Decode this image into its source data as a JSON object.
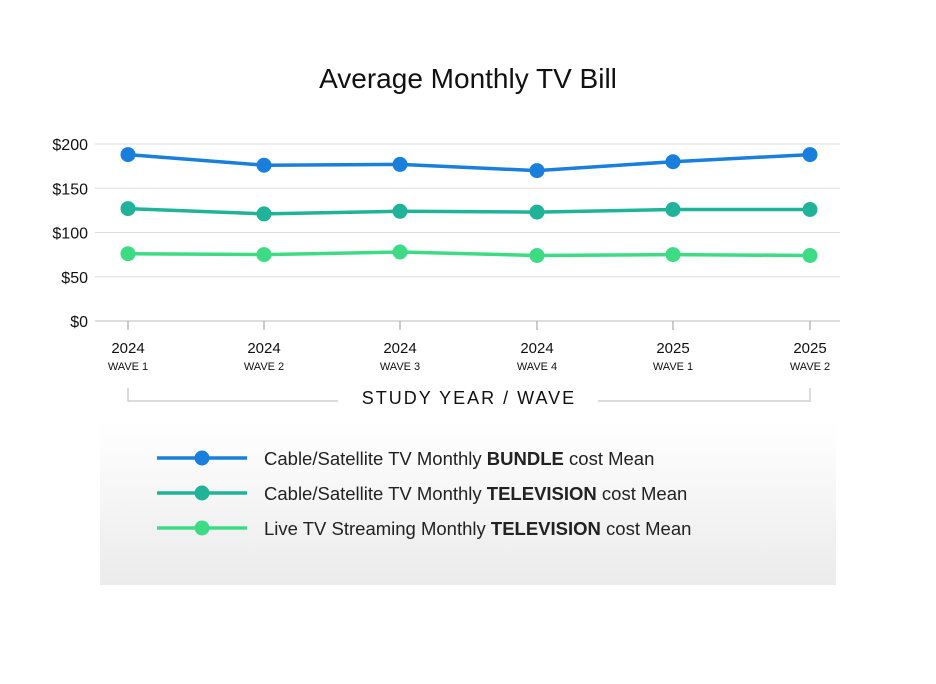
{
  "chart_data": {
    "type": "line",
    "title": "Average Monthly TV Bill",
    "xlabel": "STUDY YEAR /  WAVE",
    "ylabel": "",
    "ylim": [
      0,
      200
    ],
    "yticks": [
      "$0",
      "$50",
      "$100",
      "$150",
      "$200"
    ],
    "grid": true,
    "legend_position": "bottom",
    "categories": [
      {
        "year": "2024",
        "wave": "WAVE 1"
      },
      {
        "year": "2024",
        "wave": "WAVE 2"
      },
      {
        "year": "2024",
        "wave": "WAVE 3"
      },
      {
        "year": "2024",
        "wave": "WAVE 4"
      },
      {
        "year": "2025",
        "wave": "WAVE 1"
      },
      {
        "year": "2025",
        "wave": "WAVE 2"
      }
    ],
    "series": [
      {
        "name": "Cable/Satellite TV Monthly BUNDLE cost Mean",
        "name_prefix": "Cable/Satellite TV Monthly ",
        "name_bold": "BUNDLE",
        "name_suffix": " cost Mean",
        "color": "#1a7fdc",
        "values": [
          188,
          176,
          177,
          170,
          180,
          188
        ]
      },
      {
        "name": "Cable/Satellite TV Monthly TELEVISION cost Mean",
        "name_prefix": "Cable/Satellite TV Monthly ",
        "name_bold": "TELEVISION",
        "name_suffix": " cost Mean",
        "color": "#20b39a",
        "values": [
          127,
          121,
          124,
          123,
          126,
          126
        ]
      },
      {
        "name": "Live TV Streaming Monthly TELEVISION cost Mean",
        "name_prefix": "Live TV Streaming Monthly ",
        "name_bold": "TELEVISION",
        "name_suffix": " cost Mean",
        "color": "#3ddc84",
        "values": [
          76,
          75,
          78,
          74,
          75,
          74
        ]
      }
    ]
  }
}
